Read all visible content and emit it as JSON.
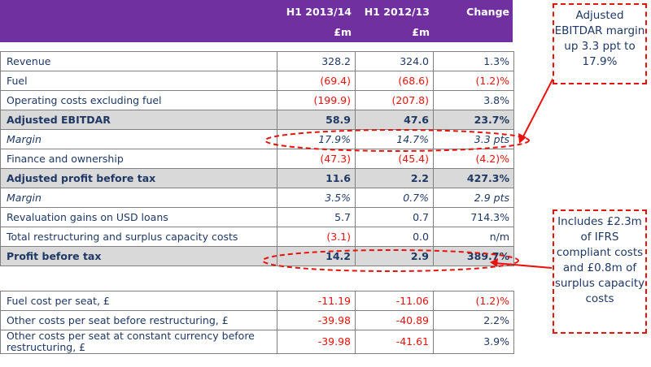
{
  "header": {
    "col1": "H1 2013/14",
    "col2": "H1 2012/13",
    "col3": "Change",
    "unit1": "£m",
    "unit2": "£m"
  },
  "rows": [
    {
      "label": "Revenue",
      "v1": "328.2",
      "v2": "324.0",
      "v3": "1.3%"
    },
    {
      "label": "Fuel",
      "v1": "(69.4)",
      "v2": "(68.6)",
      "v3": "(1.2)%"
    },
    {
      "label": "Operating costs excluding fuel",
      "v1": "(199.9)",
      "v2": "(207.8)",
      "v3": "3.8%"
    },
    {
      "label": "Adjusted EBITDAR",
      "v1": "58.9",
      "v2": "47.6",
      "v3": "23.7%"
    },
    {
      "label": "Margin",
      "v1": "17.9%",
      "v2": "14.7%",
      "v3": "3.3 pts"
    },
    {
      "label": "Finance and ownership",
      "v1": "(47.3)",
      "v2": "(45.4)",
      "v3": "(4.2)%"
    },
    {
      "label": "Adjusted profit before tax",
      "v1": "11.6",
      "v2": "2.2",
      "v3": "427.3%"
    },
    {
      "label": "Margin",
      "v1": "3.5%",
      "v2": "0.7%",
      "v3": "2.9 pts"
    },
    {
      "label": "Revaluation gains on USD loans",
      "v1": "5.7",
      "v2": "0.7",
      "v3": "714.3%"
    },
    {
      "label": "Total restructuring and surplus capacity costs",
      "v1": "(3.1)",
      "v2": "0.0",
      "v3": "n/m"
    },
    {
      "label": "Profit before tax",
      "v1": "14.2",
      "v2": "2.9",
      "v3": "389.7%"
    }
  ],
  "rows2": [
    {
      "label": "Fuel cost per seat, £",
      "v1": "-11.19",
      "v2": "-11.06",
      "v3": "(1.2)%"
    },
    {
      "label": "Other costs per seat before restructuring, £",
      "v1": "-39.98",
      "v2": "-40.89",
      "v3": "2.2%"
    },
    {
      "label": "Other costs per seat at constant currency before restructuring, £",
      "v1": "-39.98",
      "v2": "-41.61",
      "v3": "3.9%"
    }
  ],
  "callouts": {
    "top": "Adjusted EBITDAR margin up 3.3 ppt to 17.9%",
    "bottom": "Includes £2.3m of IFRS compliant costs and £0.8m of surplus capacity costs"
  },
  "colors": {
    "header": "#7030a0",
    "shade": "#d9d9d9",
    "negative": "#e8120c",
    "text": "#1f3864"
  }
}
